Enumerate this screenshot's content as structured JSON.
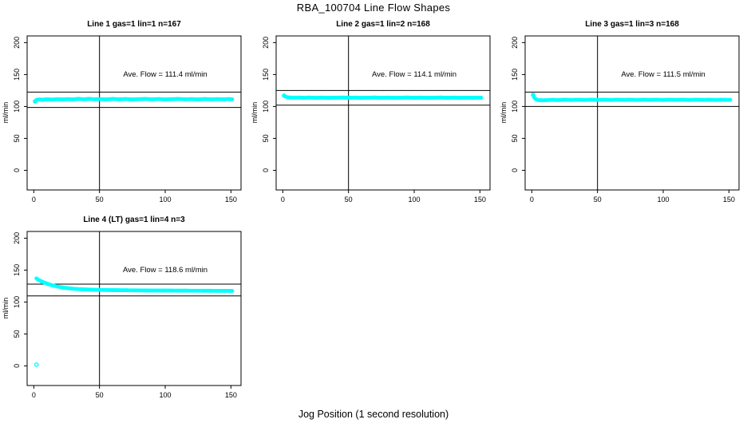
{
  "title": "RBA_100704  Line Flow Shapes",
  "xlabel": "Jog Position (1 second resolution)",
  "ylabel": "ml/min",
  "colors": {
    "points": "#00ffff",
    "lines": "#000000",
    "background": "#ffffff"
  },
  "chart_data": {
    "type": "scatter",
    "layout": "4 panels in 2x3 grid (top row: 3 panels, bottom row: 1 panel)",
    "x_ticks": [
      0,
      50,
      100,
      150
    ],
    "y_ticks": [
      0,
      50,
      100,
      150,
      200
    ],
    "xlim": [
      -5,
      158
    ],
    "ylim": [
      -31,
      210.5
    ],
    "vline_x": 50,
    "grid": false,
    "panels": [
      {
        "title": "Line 1 gas=1 lin=1 n=167",
        "n": 167,
        "ave_flow": 111.4,
        "ave_flow_text": "Ave. Flow =  111.4  ml/min",
        "ref_lines": [
          122.5,
          98.5
        ],
        "open_points": [
          [
            1,
            108
          ]
        ],
        "points": [
          [
            1,
            108
          ],
          [
            2,
            110.3
          ],
          [
            4,
            111
          ],
          [
            7,
            110.6
          ],
          [
            10,
            111.2
          ],
          [
            14,
            110.8
          ],
          [
            18,
            111.4
          ],
          [
            22,
            111
          ],
          [
            26,
            111.5
          ],
          [
            30,
            111
          ],
          [
            34,
            112
          ],
          [
            38,
            111.2
          ],
          [
            42,
            112
          ],
          [
            46,
            111.2
          ],
          [
            50,
            111.6
          ],
          [
            55,
            111
          ],
          [
            60,
            111.8
          ],
          [
            65,
            111.2
          ],
          [
            70,
            111.6
          ],
          [
            75,
            111
          ],
          [
            80,
            111.4
          ],
          [
            85,
            111.8
          ],
          [
            90,
            111.2
          ],
          [
            95,
            111.6
          ],
          [
            100,
            111
          ],
          [
            105,
            111.4
          ],
          [
            110,
            111.8
          ],
          [
            115,
            111.2
          ],
          [
            120,
            111.5
          ],
          [
            125,
            111
          ],
          [
            130,
            111.6
          ],
          [
            135,
            111.2
          ],
          [
            140,
            111.5
          ],
          [
            145,
            111.2
          ],
          [
            148,
            111.6
          ],
          [
            151,
            111.3
          ]
        ]
      },
      {
        "title": "Line 2 gas=1 lin=2 n=168",
        "n": 168,
        "ave_flow": 114.1,
        "ave_flow_text": "Ave. Flow =  114.1  ml/min",
        "ref_lines": [
          125,
          102
        ],
        "open_points": [
          [
            1,
            117
          ]
        ],
        "points": [
          [
            1,
            117
          ],
          [
            2,
            115.5
          ],
          [
            4,
            114.2
          ],
          [
            8,
            113.8
          ],
          [
            12,
            114
          ],
          [
            16,
            113.6
          ],
          [
            20,
            114
          ],
          [
            25,
            113.5
          ],
          [
            30,
            113.9
          ],
          [
            35,
            113.5
          ],
          [
            40,
            113.8
          ],
          [
            45,
            114
          ],
          [
            50,
            113.6
          ],
          [
            55,
            113.9
          ],
          [
            60,
            113.5
          ],
          [
            65,
            113.8
          ],
          [
            70,
            114
          ],
          [
            75,
            113.6
          ],
          [
            80,
            113.9
          ],
          [
            85,
            113.5
          ],
          [
            90,
            113.8
          ],
          [
            95,
            114
          ],
          [
            100,
            113.6
          ],
          [
            105,
            113.9
          ],
          [
            110,
            113.5
          ],
          [
            115,
            113.8
          ],
          [
            120,
            114
          ],
          [
            125,
            113.6
          ],
          [
            130,
            113.9
          ],
          [
            135,
            113.5
          ],
          [
            140,
            113.8
          ],
          [
            145,
            113.6
          ],
          [
            148,
            113.9
          ],
          [
            151,
            113.7
          ]
        ]
      },
      {
        "title": "Line 3 gas=1 lin=3 n=168",
        "n": 168,
        "ave_flow": 111.5,
        "ave_flow_text": "Ave. Flow =  111.5  ml/min",
        "ref_lines": [
          122.5,
          100
        ],
        "open_points": [
          [
            1,
            118
          ]
        ],
        "points": [
          [
            1,
            118
          ],
          [
            2,
            113.5
          ],
          [
            3,
            111.5
          ],
          [
            5,
            110
          ],
          [
            8,
            109.6
          ],
          [
            12,
            110
          ],
          [
            16,
            110.4
          ],
          [
            20,
            110
          ],
          [
            25,
            110.6
          ],
          [
            30,
            110.2
          ],
          [
            35,
            110.6
          ],
          [
            40,
            110.2
          ],
          [
            45,
            110.6
          ],
          [
            50,
            110.3
          ],
          [
            55,
            110.6
          ],
          [
            60,
            110.2
          ],
          [
            65,
            110.6
          ],
          [
            70,
            110.3
          ],
          [
            75,
            110.6
          ],
          [
            80,
            110.2
          ],
          [
            85,
            110.6
          ],
          [
            90,
            110.3
          ],
          [
            95,
            110.6
          ],
          [
            100,
            110.2
          ],
          [
            105,
            110.6
          ],
          [
            110,
            110.3
          ],
          [
            115,
            110.6
          ],
          [
            120,
            110.2
          ],
          [
            125,
            110.6
          ],
          [
            130,
            110.3
          ],
          [
            135,
            110.5
          ],
          [
            140,
            110.2
          ],
          [
            145,
            110.5
          ],
          [
            148,
            110.3
          ],
          [
            151,
            110.4
          ]
        ]
      },
      {
        "title": "Line 4 (LT) gas=1 lin=4 n=3",
        "n": 3,
        "ave_flow": 118.6,
        "ave_flow_text": "Ave. Flow =  118.6  ml/min",
        "ref_lines": [
          128,
          109.5
        ],
        "open_points": [
          [
            2,
            2
          ]
        ],
        "points": [
          [
            2,
            137
          ],
          [
            3,
            135.5
          ],
          [
            4,
            134.2
          ],
          [
            5,
            133.2
          ],
          [
            6,
            132.2
          ],
          [
            7,
            131.2
          ],
          [
            8,
            130.4
          ],
          [
            9,
            129.6
          ],
          [
            10,
            128.8
          ],
          [
            12,
            127.4
          ],
          [
            14,
            126.2
          ],
          [
            16,
            125.2
          ],
          [
            18,
            124.2
          ],
          [
            20,
            123.4
          ],
          [
            23,
            122.4
          ],
          [
            26,
            121.6
          ],
          [
            30,
            120.8
          ],
          [
            34,
            120.2
          ],
          [
            38,
            119.8
          ],
          [
            42,
            119.5
          ],
          [
            46,
            119.2
          ],
          [
            50,
            119
          ],
          [
            55,
            118.8
          ],
          [
            60,
            118.6
          ],
          [
            65,
            118.5
          ],
          [
            70,
            118.4
          ],
          [
            75,
            118.3
          ],
          [
            80,
            118.2
          ],
          [
            85,
            118.1
          ],
          [
            90,
            118
          ],
          [
            95,
            118
          ],
          [
            100,
            117.9
          ],
          [
            105,
            117.9
          ],
          [
            110,
            117.8
          ],
          [
            115,
            117.8
          ],
          [
            120,
            117.7
          ],
          [
            125,
            117.7
          ],
          [
            130,
            117.6
          ],
          [
            135,
            117.6
          ],
          [
            140,
            117.5
          ],
          [
            145,
            117.5
          ],
          [
            148,
            117.5
          ],
          [
            151,
            117.4
          ]
        ]
      }
    ]
  }
}
